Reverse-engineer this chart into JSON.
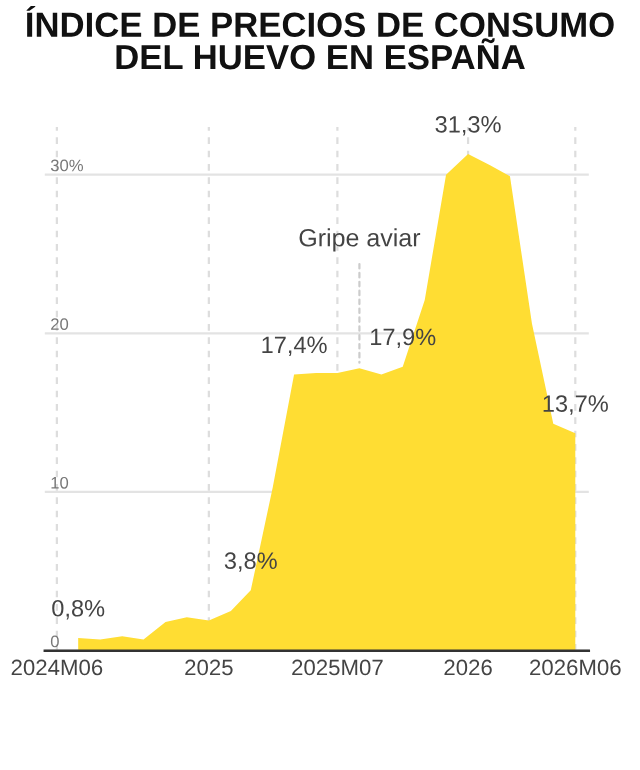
{
  "chart_data": {
    "type": "area",
    "title": "ÍNDICE DE PRECIOS DE CONSUMO\nDEL HUEVO EN ESPAÑA",
    "x": [
      "2024-07",
      "2024-08",
      "2024-09",
      "2024-10",
      "2024-11",
      "2024-12",
      "2025-01",
      "2025-02",
      "2025-03",
      "2025-04",
      "2025-05",
      "2025-06",
      "2025-07",
      "2025-08",
      "2025-09",
      "2025-10",
      "2025-11",
      "2025-12",
      "2026-01",
      "2026-02",
      "2026-03",
      "2026-04",
      "2026-05",
      "2026-06"
    ],
    "series": [
      {
        "color": "#ffdd33",
        "values": [
          0.8,
          0.7,
          0.9,
          0.7,
          1.8,
          2.1,
          1.9,
          2.5,
          3.8,
          10.3,
          17.4,
          17.5,
          17.5,
          17.8,
          17.4,
          17.9,
          22.1,
          30.0,
          31.3,
          30.6,
          29.9,
          20.6,
          14.3,
          13.7
        ],
        "value_labels": [
          "0,8%",
          null,
          null,
          null,
          null,
          null,
          null,
          null,
          "3,8%",
          null,
          "17,4%",
          null,
          null,
          null,
          null,
          "17,9%",
          null,
          null,
          "31,3%",
          null,
          null,
          null,
          null,
          "13,7%"
        ]
      }
    ],
    "annotations": [
      {
        "text": "Gripe aviar",
        "x": "2025-08",
        "y": 17.8
      }
    ],
    "xlim": [
      "2024-05-15",
      "2026-06-20"
    ],
    "ylim": [
      0,
      33
    ],
    "xticks": [
      {
        "value": "2024-06",
        "label": "2024M06"
      },
      {
        "value": "2025-01",
        "label": "2025"
      },
      {
        "value": "2025-07",
        "label": "2025M07"
      },
      {
        "value": "2026-01",
        "label": "2026"
      },
      {
        "value": "2026-06",
        "label": "2026M06"
      }
    ],
    "yticks": [
      0,
      10,
      20,
      {
        "value": 30,
        "label": "30%"
      }
    ],
    "grid": true,
    "legend": false
  }
}
